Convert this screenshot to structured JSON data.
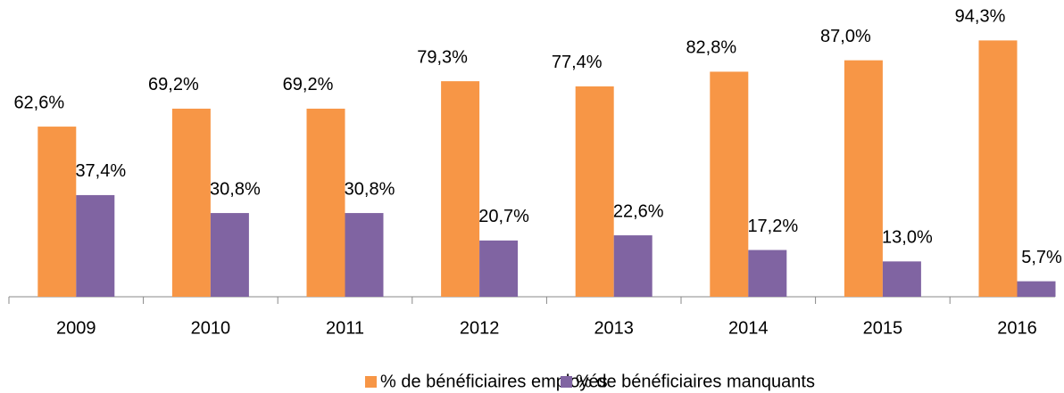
{
  "chart_data": {
    "type": "bar",
    "categories": [
      "2009",
      "2010",
      "2011",
      "2012",
      "2013",
      "2014",
      "2015",
      "2016"
    ],
    "series": [
      {
        "name": "% de bénéficiaires employés",
        "color": "#F79646",
        "values": [
          62.6,
          69.2,
          69.2,
          79.3,
          77.4,
          82.8,
          87.0,
          94.3
        ],
        "value_labels": [
          "62,6%",
          "69,2%",
          "69,2%",
          "79,3%",
          "77,4%",
          "82,8%",
          "87,0%",
          "94,3%"
        ]
      },
      {
        "name": "% de bénéficiaires manquants",
        "color": "#8064A2",
        "values": [
          37.4,
          30.8,
          30.8,
          20.7,
          22.6,
          17.2,
          13.0,
          5.7
        ],
        "value_labels": [
          "37,4%",
          "30,8%",
          "30,8%",
          "20,7%",
          "22,6%",
          "17,2%",
          "13,0%",
          "5,7%"
        ]
      }
    ],
    "ylim": [
      0,
      100
    ],
    "legend": "bottom"
  }
}
